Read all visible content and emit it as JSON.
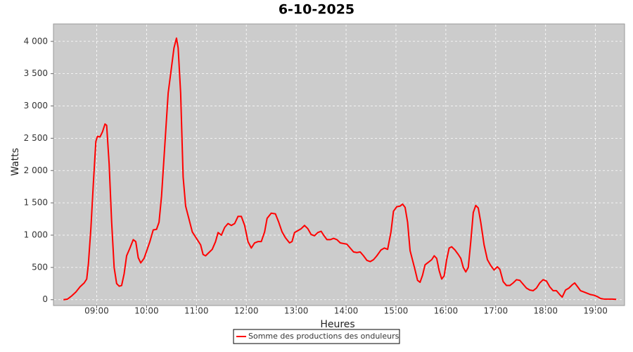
{
  "chart_data": {
    "type": "line",
    "title": "6-10-2025",
    "x_label": "Heures",
    "y_label": "Watts",
    "x": [
      "08:20",
      "08:25",
      "08:30",
      "08:35",
      "08:40",
      "08:45",
      "08:48",
      "08:50",
      "08:53",
      "08:56",
      "08:59",
      "09:01",
      "09:04",
      "09:07",
      "09:10",
      "09:12",
      "09:15",
      "09:18",
      "09:21",
      "09:24",
      "09:27",
      "09:30",
      "09:33",
      "09:36",
      "09:40",
      "09:44",
      "09:47",
      "09:50",
      "09:53",
      "09:57",
      "10:00",
      "10:04",
      "10:08",
      "10:12",
      "10:15",
      "10:18",
      "10:22",
      "10:26",
      "10:30",
      "10:33",
      "10:36",
      "10:38",
      "10:41",
      "10:44",
      "10:47",
      "10:51",
      "10:55",
      "11:00",
      "11:05",
      "11:08",
      "11:11",
      "11:15",
      "11:19",
      "11:23",
      "11:26",
      "11:30",
      "11:34",
      "11:38",
      "11:42",
      "11:46",
      "11:50",
      "11:54",
      "11:58",
      "12:02",
      "12:06",
      "12:10",
      "12:14",
      "12:18",
      "12:22",
      "12:25",
      "12:30",
      "12:35",
      "12:39",
      "12:43",
      "12:47",
      "12:52",
      "12:55",
      "12:58",
      "13:02",
      "13:06",
      "13:10",
      "13:14",
      "13:18",
      "13:22",
      "13:26",
      "13:30",
      "13:33",
      "13:37",
      "13:41",
      "13:45",
      "13:49",
      "13:53",
      "13:57",
      "14:01",
      "14:05",
      "14:09",
      "14:13",
      "14:17",
      "14:21",
      "14:25",
      "14:29",
      "14:33",
      "14:37",
      "14:42",
      "14:46",
      "14:50",
      "14:54",
      "14:57",
      "15:01",
      "15:05",
      "15:08",
      "15:11",
      "15:14",
      "15:17",
      "15:20",
      "15:23",
      "15:26",
      "15:29",
      "15:32",
      "15:35",
      "15:39",
      "15:43",
      "15:46",
      "15:49",
      "15:52",
      "15:55",
      "15:58",
      "16:01",
      "16:04",
      "16:07",
      "16:11",
      "16:15",
      "16:18",
      "16:21",
      "16:24",
      "16:27",
      "16:30",
      "16:33",
      "16:36",
      "16:39",
      "16:42",
      "16:46",
      "16:50",
      "16:54",
      "16:58",
      "17:02",
      "17:05",
      "17:09",
      "17:13",
      "17:17",
      "17:21",
      "17:25",
      "17:29",
      "17:33",
      "17:37",
      "17:41",
      "17:45",
      "17:49",
      "17:53",
      "17:57",
      "18:01",
      "18:05",
      "18:09",
      "18:13",
      "18:17",
      "18:20",
      "18:24",
      "18:28",
      "18:32",
      "18:35",
      "18:38",
      "18:42",
      "18:46",
      "18:50",
      "18:54",
      "18:58",
      "19:02",
      "19:06",
      "19:10",
      "19:15",
      "19:20",
      "19:25"
    ],
    "series": [
      {
        "name": "Somme des productions des onduleurs",
        "color": "#ff0000",
        "values": [
          0,
          10,
          60,
          120,
          200,
          260,
          320,
          550,
          1100,
          1800,
          2450,
          2530,
          2520,
          2600,
          2720,
          2700,
          2100,
          1200,
          500,
          250,
          210,
          220,
          400,
          680,
          800,
          930,
          900,
          650,
          570,
          640,
          750,
          900,
          1080,
          1090,
          1200,
          1600,
          2400,
          3200,
          3600,
          3900,
          4050,
          3900,
          3200,
          1900,
          1450,
          1250,
          1050,
          950,
          850,
          700,
          680,
          730,
          780,
          900,
          1040,
          1000,
          1120,
          1180,
          1150,
          1180,
          1290,
          1290,
          1150,
          900,
          800,
          880,
          900,
          900,
          1050,
          1260,
          1340,
          1330,
          1200,
          1050,
          960,
          880,
          900,
          1040,
          1070,
          1100,
          1150,
          1100,
          1010,
          990,
          1040,
          1060,
          1000,
          930,
          930,
          950,
          930,
          880,
          870,
          860,
          800,
          740,
          730,
          740,
          680,
          610,
          590,
          620,
          680,
          770,
          800,
          780,
          1050,
          1370,
          1440,
          1450,
          1480,
          1430,
          1200,
          760,
          610,
          460,
          300,
          270,
          380,
          540,
          580,
          620,
          680,
          640,
          450,
          320,
          370,
          620,
          800,
          820,
          770,
          700,
          640,
          500,
          430,
          500,
          900,
          1350,
          1460,
          1420,
          1200,
          850,
          620,
          530,
          460,
          510,
          470,
          280,
          220,
          220,
          260,
          310,
          300,
          240,
          180,
          150,
          140,
          180,
          260,
          310,
          290,
          200,
          140,
          140,
          80,
          40,
          150,
          180,
          230,
          260,
          210,
          140,
          120,
          100,
          80,
          70,
          50,
          20,
          10,
          10,
          10,
          5
        ]
      }
    ],
    "xlim": [
      "08:08",
      "19:35"
    ],
    "xticks": [
      "09:00",
      "10:00",
      "11:00",
      "12:00",
      "13:00",
      "14:00",
      "15:00",
      "16:00",
      "17:00",
      "18:00",
      "19:00"
    ],
    "ylim": [
      -90,
      4270
    ],
    "yticks": [
      0,
      500,
      {
        "value": 1000,
        "label": "1 000"
      },
      {
        "value": 1500,
        "label": "1 500"
      },
      {
        "value": 2000,
        "label": "2 000"
      },
      {
        "value": 2500,
        "label": "2 500"
      },
      {
        "value": 3000,
        "label": "3 000"
      },
      {
        "value": 3500,
        "label": "3 500"
      },
      {
        "value": 4000,
        "label": "4 000"
      }
    ],
    "grid": true,
    "legend": "bottom"
  }
}
